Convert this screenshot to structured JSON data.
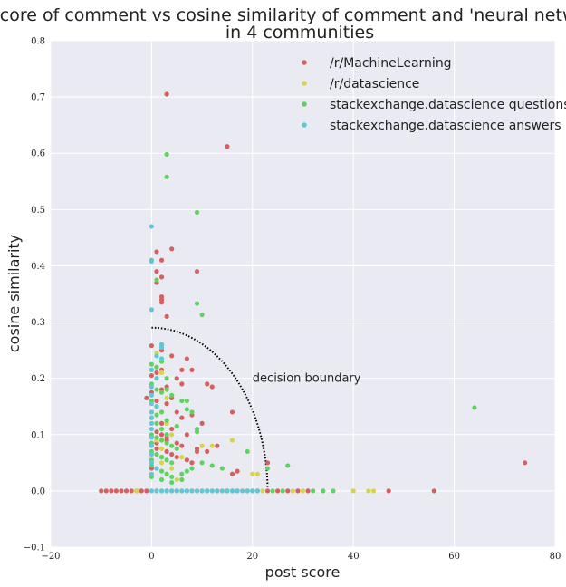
{
  "chart_data": {
    "type": "scatter",
    "title_lines": [
      "score of comment vs cosine similarity of comment and 'neural network'",
      "in 4 communities"
    ],
    "xlabel": "post score",
    "ylabel": "cosine similarity",
    "xlim": [
      -20,
      80
    ],
    "ylim": [
      -0.1,
      0.8
    ],
    "xticks": [
      -20,
      0,
      20,
      40,
      60,
      80
    ],
    "yticks": [
      -0.1,
      0.0,
      0.1,
      0.2,
      0.3,
      0.4,
      0.5,
      0.6,
      0.7,
      0.8
    ],
    "ytick_labels": [
      "−0.1",
      "0.0",
      "0.1",
      "0.2",
      "0.3",
      "0.4",
      "0.5",
      "0.6",
      "0.7",
      "0.8"
    ],
    "xtick_labels": [
      "−20",
      "0",
      "20",
      "40",
      "60",
      "80"
    ],
    "grid": true,
    "background": "#eaeaf2",
    "legend_position": "top-right",
    "annotation": {
      "text": "decision boundary",
      "x": 20,
      "y": 0.2
    },
    "boundary": {
      "radius_x": 23,
      "radius_y": 0.29
    },
    "series": [
      {
        "name": "/r/MachineLearning",
        "color": "#d65f5f",
        "points": [
          [
            3,
            0.705
          ],
          [
            15,
            0.612
          ],
          [
            4,
            0.43
          ],
          [
            1,
            0.425
          ],
          [
            2,
            0.41
          ],
          [
            9,
            0.39
          ],
          [
            1,
            0.39
          ],
          [
            2,
            0.38
          ],
          [
            1,
            0.37
          ],
          [
            2,
            0.345
          ],
          [
            2,
            0.34
          ],
          [
            2,
            0.335
          ],
          [
            3,
            0.31
          ],
          [
            0,
            0.258
          ],
          [
            2,
            0.25
          ],
          [
            4,
            0.24
          ],
          [
            7,
            0.235
          ],
          [
            8,
            0.215
          ],
          [
            2,
            0.215
          ],
          [
            6,
            0.215
          ],
          [
            1,
            0.21
          ],
          [
            0,
            0.205
          ],
          [
            5,
            0.2
          ],
          [
            11,
            0.19
          ],
          [
            12,
            0.185
          ],
          [
            3,
            0.185
          ],
          [
            2,
            0.18
          ],
          [
            0,
            0.175
          ],
          [
            -1,
            0.165
          ],
          [
            1,
            0.16
          ],
          [
            3,
            0.155
          ],
          [
            5,
            0.14
          ],
          [
            16,
            0.14
          ],
          [
            8,
            0.135
          ],
          [
            10,
            0.12
          ],
          [
            6,
            0.13
          ],
          [
            4,
            0.11
          ],
          [
            2,
            0.1
          ],
          [
            7,
            0.1
          ],
          [
            3,
            0.09
          ],
          [
            1,
            0.085
          ],
          [
            6,
            0.08
          ],
          [
            9,
            0.075
          ],
          [
            13,
            0.08
          ],
          [
            11,
            0.07
          ],
          [
            4,
            0.065
          ],
          [
            2,
            0.06
          ],
          [
            8,
            0.05
          ],
          [
            17,
            0.035
          ],
          [
            16,
            0.03
          ],
          [
            23,
            0.05
          ],
          [
            0,
            0.04
          ],
          [
            74,
            0.05
          ],
          [
            1,
            0.075
          ],
          [
            3,
            0.095
          ],
          [
            5,
            0.06
          ],
          [
            7,
            0.055
          ],
          [
            9,
            0.07
          ],
          [
            2,
            0.12
          ],
          [
            4,
            0.165
          ],
          [
            6,
            0.19
          ],
          [
            0,
            0.14
          ],
          [
            1,
            0.105
          ],
          [
            3,
            0.07
          ],
          [
            5,
            0.085
          ],
          [
            -10,
            0
          ],
          [
            -9,
            0
          ],
          [
            -8,
            0
          ],
          [
            -7,
            0
          ],
          [
            -6,
            0
          ],
          [
            -5,
            0
          ],
          [
            -4,
            0
          ],
          [
            -3,
            0
          ],
          [
            -2,
            0
          ],
          [
            -1,
            0
          ],
          [
            1,
            0
          ],
          [
            3,
            0
          ],
          [
            5,
            0
          ],
          [
            7,
            0
          ],
          [
            9,
            0
          ],
          [
            11,
            0
          ],
          [
            13,
            0
          ],
          [
            15,
            0
          ],
          [
            17,
            0
          ],
          [
            19,
            0
          ],
          [
            21,
            0
          ],
          [
            23,
            0
          ],
          [
            25,
            0
          ],
          [
            27,
            0
          ],
          [
            29,
            0
          ],
          [
            31,
            0
          ],
          [
            47,
            0
          ],
          [
            56,
            0
          ]
        ]
      },
      {
        "name": "/r/datascience",
        "color": "#d5d54d",
        "points": [
          [
            1,
            0.245
          ],
          [
            2,
            0.21
          ],
          [
            1,
            0.2
          ],
          [
            3,
            0.165
          ],
          [
            2,
            0.14
          ],
          [
            3,
            0.12
          ],
          [
            4,
            0.1
          ],
          [
            1,
            0.09
          ],
          [
            16,
            0.09
          ],
          [
            10,
            0.08
          ],
          [
            12,
            0.08
          ],
          [
            2,
            0.075
          ],
          [
            6,
            0.06
          ],
          [
            20,
            0.03
          ],
          [
            21,
            0.03
          ],
          [
            4,
            0.04
          ],
          [
            2,
            0.05
          ],
          [
            3,
            0.03
          ],
          [
            5,
            0.02
          ],
          [
            -3,
            0
          ],
          [
            2,
            0
          ],
          [
            6,
            0
          ],
          [
            10,
            0
          ],
          [
            14,
            0
          ],
          [
            22,
            0
          ],
          [
            28,
            0
          ],
          [
            30,
            0
          ],
          [
            40,
            0
          ],
          [
            43,
            0
          ],
          [
            44,
            0
          ]
        ]
      },
      {
        "name": "stackexchange.datascience questions",
        "color": "#5fd35f",
        "points": [
          [
            3,
            0.598
          ],
          [
            3,
            0.558
          ],
          [
            9,
            0.495
          ],
          [
            0,
            0.41
          ],
          [
            1,
            0.375
          ],
          [
            9,
            0.333
          ],
          [
            10,
            0.313
          ],
          [
            0,
            0.225
          ],
          [
            0,
            0.215
          ],
          [
            1,
            0.22
          ],
          [
            2,
            0.23
          ],
          [
            2,
            0.26
          ],
          [
            3,
            0.2
          ],
          [
            3,
            0.18
          ],
          [
            4,
            0.17
          ],
          [
            6,
            0.16
          ],
          [
            7,
            0.16
          ],
          [
            8,
            0.14
          ],
          [
            9,
            0.11
          ],
          [
            0,
            0.19
          ],
          [
            1,
            0.18
          ],
          [
            2,
            0.175
          ],
          [
            0,
            0.16
          ],
          [
            1,
            0.15
          ],
          [
            2,
            0.14
          ],
          [
            0,
            0.13
          ],
          [
            1,
            0.12
          ],
          [
            2,
            0.11
          ],
          [
            3,
            0.1
          ],
          [
            0,
            0.1
          ],
          [
            1,
            0.095
          ],
          [
            2,
            0.09
          ],
          [
            3,
            0.085
          ],
          [
            4,
            0.08
          ],
          [
            5,
            0.075
          ],
          [
            0,
            0.07
          ],
          [
            1,
            0.065
          ],
          [
            2,
            0.06
          ],
          [
            3,
            0.055
          ],
          [
            4,
            0.05
          ],
          [
            0,
            0.045
          ],
          [
            1,
            0.04
          ],
          [
            2,
            0.035
          ],
          [
            3,
            0.03
          ],
          [
            4,
            0.025
          ],
          [
            6,
            0.03
          ],
          [
            7,
            0.035
          ],
          [
            8,
            0.04
          ],
          [
            10,
            0.05
          ],
          [
            12,
            0.045
          ],
          [
            14,
            0.04
          ],
          [
            19,
            0.07
          ],
          [
            27,
            0.045
          ],
          [
            23,
            0.04
          ],
          [
            64,
            0.148
          ],
          [
            9,
            0.105
          ],
          [
            7,
            0.145
          ],
          [
            5,
            0.115
          ],
          [
            3,
            0.125
          ],
          [
            1,
            0.135
          ],
          [
            0,
            0.085
          ],
          [
            0,
            0.055
          ],
          [
            0,
            0.025
          ],
          [
            2,
            0.02
          ],
          [
            4,
            0.015
          ],
          [
            6,
            0.02
          ],
          [
            1,
            0
          ],
          [
            4,
            0
          ],
          [
            8,
            0
          ],
          [
            12,
            0
          ],
          [
            16,
            0
          ],
          [
            20,
            0
          ],
          [
            24,
            0
          ],
          [
            26,
            0
          ],
          [
            32,
            0
          ],
          [
            34,
            0
          ],
          [
            36,
            0
          ]
        ]
      },
      {
        "name": "stackexchange.datascience answers",
        "color": "#5fc7d6",
        "points": [
          [
            0,
            0.47
          ],
          [
            0,
            0.408
          ],
          [
            0,
            0.322
          ],
          [
            2,
            0.26
          ],
          [
            2,
            0.255
          ],
          [
            1,
            0.24
          ],
          [
            2,
            0.235
          ],
          [
            0,
            0.215
          ],
          [
            1,
            0.2
          ],
          [
            0,
            0.185
          ],
          [
            0,
            0.17
          ],
          [
            0,
            0.155
          ],
          [
            1,
            0.15
          ],
          [
            0,
            0.14
          ],
          [
            0,
            0.13
          ],
          [
            0,
            0.12
          ],
          [
            0,
            0.11
          ],
          [
            0,
            0.095
          ],
          [
            0,
            0.08
          ],
          [
            0,
            0.065
          ],
          [
            0,
            0.05
          ],
          [
            1,
            0.04
          ],
          [
            0,
            0.03
          ],
          [
            0,
            0
          ],
          [
            1,
            0
          ],
          [
            2,
            0
          ],
          [
            3,
            0
          ],
          [
            4,
            0
          ],
          [
            5,
            0
          ],
          [
            6,
            0
          ],
          [
            7,
            0
          ],
          [
            8,
            0
          ],
          [
            9,
            0
          ],
          [
            10,
            0
          ],
          [
            11,
            0
          ],
          [
            12,
            0
          ],
          [
            13,
            0
          ],
          [
            14,
            0
          ],
          [
            15,
            0
          ],
          [
            16,
            0
          ],
          [
            17,
            0
          ],
          [
            18,
            0
          ],
          [
            19,
            0
          ],
          [
            20,
            0
          ],
          [
            21,
            0
          ]
        ]
      }
    ]
  }
}
